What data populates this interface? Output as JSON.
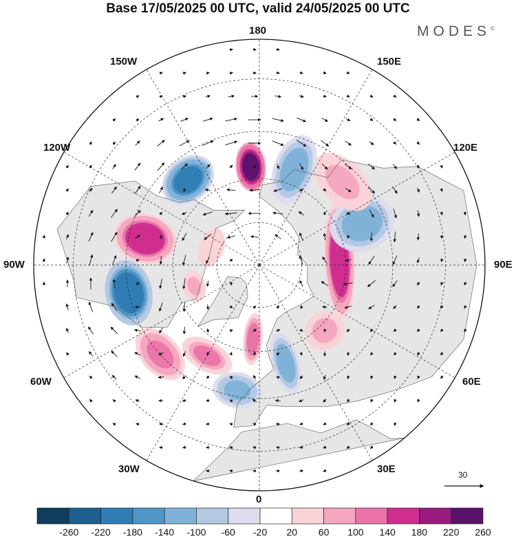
{
  "title": "Base 17/05/2025 00 UTC, valid 24/05/2025 00 UTC",
  "brand": "MODES",
  "brand_mark": "©",
  "lon_labels": {
    "top": "180",
    "bottom": "0",
    "left": "90W",
    "right": "90E",
    "nw1": "150W",
    "nw2": "120W",
    "ne1": "150E",
    "ne2": "120E",
    "sw1": "60W",
    "sw2": "30W",
    "se1": "60E",
    "se2": "30E"
  },
  "reference_vector": "30",
  "colorbar": {
    "ticks": [
      "-260",
      "-220",
      "-180",
      "-140",
      "-100",
      "-60",
      "-20",
      "20",
      "60",
      "100",
      "140",
      "180",
      "220",
      "260"
    ],
    "colors": [
      "#0e3d5d",
      "#1d5f8f",
      "#2e7db4",
      "#4f95c7",
      "#7fb2d8",
      "#b3c8e3",
      "#dcdcee",
      "#ffffff",
      "#fad3d8",
      "#f4a7bf",
      "#ea74a9",
      "#cf2e8f",
      "#981b7f",
      "#5a126b"
    ]
  },
  "anomalies": [
    {
      "lat": 56,
      "lon": -175,
      "value": 230,
      "rx": 22,
      "ry": 36
    },
    {
      "lat": 52,
      "lon": -140,
      "value": -190,
      "rx": 42,
      "ry": 32
    },
    {
      "lat": 50,
      "lon": -103,
      "value": 170,
      "rx": 36,
      "ry": 46
    },
    {
      "lat": 45,
      "lon": -78,
      "value": -210,
      "rx": 48,
      "ry": 34
    },
    {
      "lat": 45,
      "lon": -48,
      "value": 110,
      "rx": 44,
      "ry": 28
    },
    {
      "lat": 54,
      "lon": -30,
      "value": 100,
      "rx": 40,
      "ry": 22
    },
    {
      "lat": 47,
      "lon": -10,
      "value": -110,
      "rx": 36,
      "ry": 26
    },
    {
      "lat": 64,
      "lon": -5,
      "value": 120,
      "rx": 14,
      "ry": 38
    },
    {
      "lat": 55,
      "lon": 15,
      "value": -130,
      "rx": 20,
      "ry": 46
    },
    {
      "lat": 58,
      "lon": 45,
      "value": 70,
      "rx": 30,
      "ry": 28
    },
    {
      "lat": 62,
      "lon": 93,
      "value": 170,
      "rx": 84,
      "ry": 22
    },
    {
      "lat": 52,
      "lon": 112,
      "value": -130,
      "rx": 40,
      "ry": 48
    },
    {
      "lat": 50,
      "lon": 135,
      "value": 60,
      "rx": 56,
      "ry": 34
    },
    {
      "lat": 55,
      "lon": 160,
      "value": -120,
      "rx": 30,
      "ry": 52
    },
    {
      "lat": 72,
      "lon": -110,
      "value": 50,
      "rx": 32,
      "ry": 20
    },
    {
      "lat": 66,
      "lon": -72,
      "value": 60,
      "rx": 26,
      "ry": 18
    }
  ],
  "circulation": [
    {
      "lat": 56,
      "lon": -175,
      "value": 230
    },
    {
      "lat": 52,
      "lon": -140,
      "value": -190
    },
    {
      "lat": 50,
      "lon": -103,
      "value": 170
    },
    {
      "lat": 45,
      "lon": -78,
      "value": -210
    },
    {
      "lat": 45,
      "lon": -48,
      "value": 110
    },
    {
      "lat": 55,
      "lon": 15,
      "value": -130
    },
    {
      "lat": 62,
      "lon": 93,
      "value": 170
    },
    {
      "lat": 52,
      "lon": 112,
      "value": -130
    },
    {
      "lat": 55,
      "lon": 160,
      "value": -120
    },
    {
      "lat": 50,
      "lon": 135,
      "value": 60
    }
  ]
}
